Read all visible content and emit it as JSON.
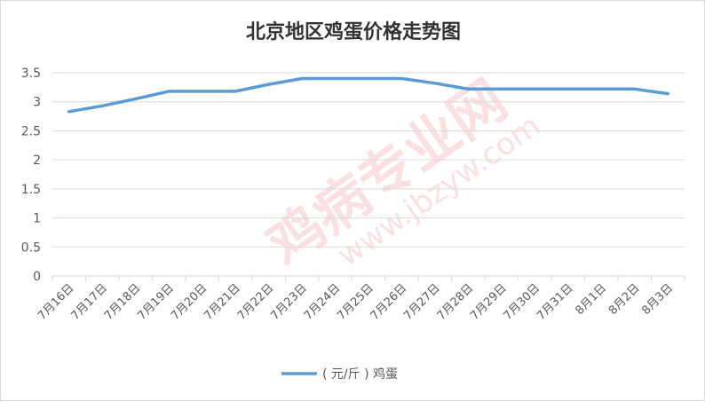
{
  "chart_data": {
    "type": "line",
    "title": "北京地区鸡蛋价格走势图",
    "xlabel": "",
    "ylabel": "",
    "ylim": [
      0,
      3.5
    ],
    "yticks": [
      "0",
      "0.5",
      "1",
      "1.5",
      "2",
      "2.5",
      "3",
      "3.5"
    ],
    "grid": true,
    "legend_position": "bottom",
    "categories": [
      "7月16日",
      "7月17日",
      "7月18日",
      "7月19日",
      "7月20日",
      "7月21日",
      "7月22日",
      "7月23日",
      "7月24日",
      "7月25日",
      "7月26日",
      "7月27日",
      "7月28日",
      "7月29日",
      "7月30日",
      "7月31日",
      "8月1日",
      "8月2日",
      "8月3日"
    ],
    "series": [
      {
        "name": "( 元/斤 ) 鸡蛋",
        "color": "#5b9bd5",
        "values": [
          2.83,
          2.93,
          3.05,
          3.18,
          3.18,
          3.18,
          3.3,
          3.4,
          3.4,
          3.4,
          3.4,
          3.32,
          3.22,
          3.22,
          3.22,
          3.22,
          3.22,
          3.22,
          3.14
        ]
      }
    ]
  },
  "watermark": {
    "text_main": "鸡病专业网",
    "text_url": "www.jbzyw.com"
  }
}
